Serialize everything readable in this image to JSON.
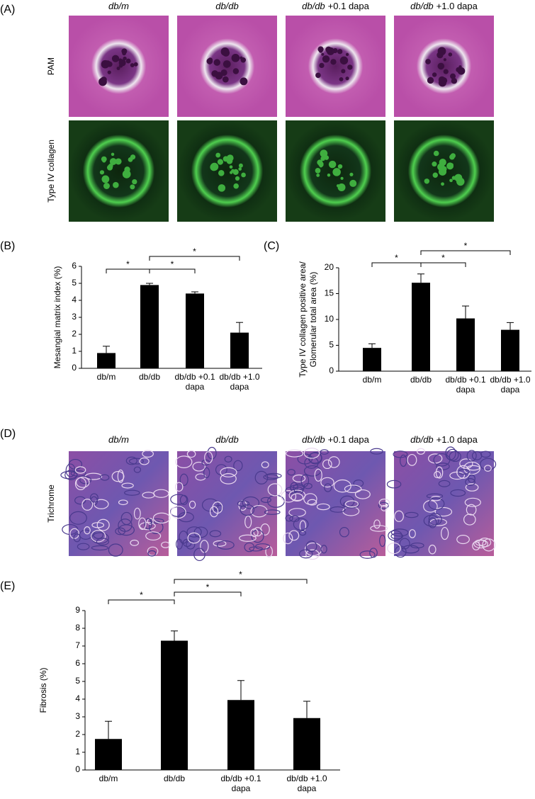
{
  "panels": {
    "A": {
      "label": "(A)",
      "columns": [
        {
          "strain": "db/m"
        },
        {
          "strain": "db/db"
        },
        {
          "strain": "db/db",
          "dose": "+0.1 dapa"
        },
        {
          "strain": "db/db",
          "dose": "+1.0 dapa"
        }
      ],
      "rows": [
        "PAM",
        "Type IV collagen"
      ]
    },
    "D": {
      "label": "(D)",
      "columns": [
        {
          "strain": "db/m"
        },
        {
          "strain": "db/db"
        },
        {
          "strain": "db/db",
          "dose": "+0.1 dapa"
        },
        {
          "strain": "db/db",
          "dose": "+1.0 dapa"
        }
      ],
      "rows": [
        "Trichrome"
      ]
    }
  },
  "chart_data": [
    {
      "type": "bar",
      "panel_label": "(B)",
      "ylabel": [
        "Mesangial matrix index (%)"
      ],
      "categories": [
        "db/m",
        "db/db",
        "db/db +0.1 dapa",
        "db/db +1.0 dapa"
      ],
      "values": [
        0.9,
        4.9,
        4.4,
        2.1
      ],
      "errors": [
        0.4,
        0.1,
        0.1,
        0.6
      ],
      "color": "#000000",
      "ylim": [
        0,
        6
      ],
      "yticks": [
        0,
        1,
        2,
        3,
        4,
        5,
        6
      ],
      "comparisons": [
        {
          "pair": [
            0,
            1
          ],
          "label": "*"
        },
        {
          "pair": [
            1,
            2
          ],
          "label": "*"
        },
        {
          "pair": [
            1,
            3
          ],
          "label": "*"
        }
      ]
    },
    {
      "type": "bar",
      "panel_label": "(C)",
      "ylabel": [
        "Type IV collagen positive area/",
        "Glomerular total area (%)"
      ],
      "categories": [
        "db/m",
        "db/db",
        "db/db +0.1 dapa",
        "db/db +1.0 dapa"
      ],
      "values": [
        4.5,
        17.1,
        10.2,
        8.0
      ],
      "errors": [
        0.8,
        1.7,
        2.4,
        1.4
      ],
      "color": "#000000",
      "ylim": [
        0,
        20
      ],
      "yticks": [
        0,
        5,
        10,
        15,
        20
      ],
      "comparisons": [
        {
          "pair": [
            0,
            1
          ],
          "label": "*"
        },
        {
          "pair": [
            1,
            2
          ],
          "label": "*"
        },
        {
          "pair": [
            1,
            3
          ],
          "label": "*"
        }
      ]
    },
    {
      "type": "bar",
      "panel_label": "(E)",
      "ylabel": [
        "Fibrosis (%)"
      ],
      "categories": [
        "db/m",
        "db/db",
        "db/db +0.1 dapa",
        "db/db +1.0 dapa"
      ],
      "values": [
        1.75,
        7.3,
        3.95,
        2.93
      ],
      "errors": [
        1.0,
        0.55,
        1.1,
        0.95
      ],
      "color": "#000000",
      "ylim": [
        0,
        9
      ],
      "yticks": [
        0,
        1,
        2,
        3,
        4,
        5,
        6,
        7,
        8,
        9
      ],
      "comparisons": [
        {
          "pair": [
            0,
            1
          ],
          "label": "*"
        },
        {
          "pair": [
            1,
            2
          ],
          "label": "*"
        },
        {
          "pair": [
            1,
            3
          ],
          "label": "*"
        }
      ]
    }
  ]
}
